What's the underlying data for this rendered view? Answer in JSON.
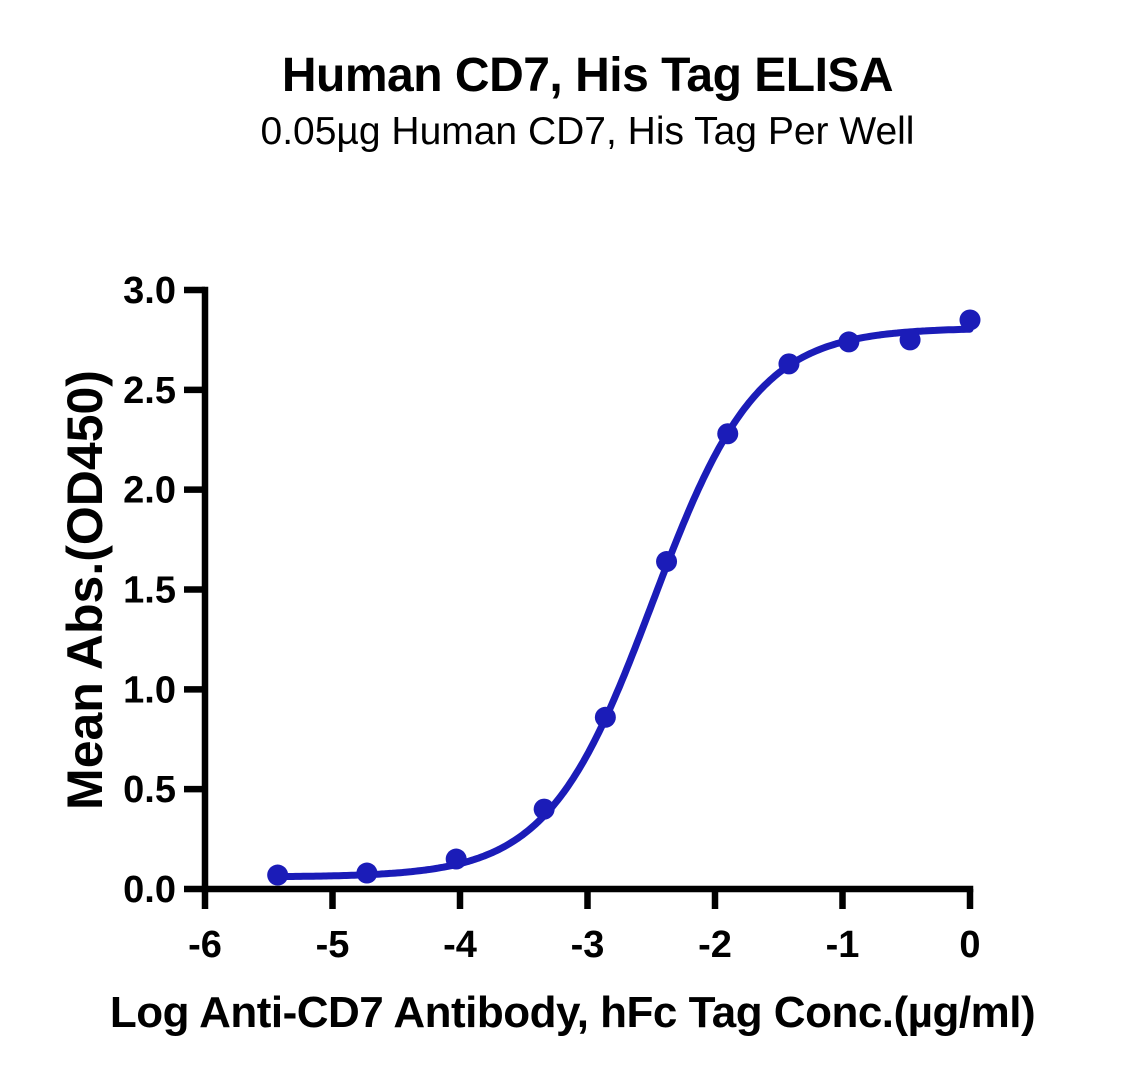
{
  "chart_data": {
    "type": "scatter",
    "title": "Human CD7, His Tag ELISA",
    "subtitle": "0.05µg Human CD7, His Tag Per Well",
    "xlabel": "Log Anti-CD7 Antibody, hFc Tag Conc.(µg/ml)",
    "ylabel": "Mean Abs.(OD450)",
    "xlim": [
      -6,
      0
    ],
    "ylim": [
      0,
      3
    ],
    "x_ticks": [
      -6,
      -5,
      -4,
      -3,
      -2,
      -1,
      0
    ],
    "y_ticks": [
      0.0,
      0.5,
      1.0,
      1.5,
      2.0,
      2.5,
      3.0
    ],
    "grid": false,
    "legend": "none",
    "axis_color": "#000000",
    "series": [
      {
        "name": "Anti-CD7 Antibody, hFc Tag",
        "color": "#1b1cb8",
        "marker": "circle",
        "points": [
          {
            "x": -5.43,
            "y": 0.07
          },
          {
            "x": -4.73,
            "y": 0.08
          },
          {
            "x": -4.03,
            "y": 0.15
          },
          {
            "x": -3.34,
            "y": 0.4
          },
          {
            "x": -2.86,
            "y": 0.86
          },
          {
            "x": -2.38,
            "y": 1.64
          },
          {
            "x": -1.9,
            "y": 2.28
          },
          {
            "x": -1.42,
            "y": 2.63
          },
          {
            "x": -0.95,
            "y": 2.74
          },
          {
            "x": -0.47,
            "y": 2.75
          },
          {
            "x": 0.0,
            "y": 2.85
          }
        ]
      }
    ],
    "fit_curve": {
      "model": "4PL",
      "bottom": 0.06,
      "top": 2.81,
      "logEC50": -2.49,
      "hillslope": 1.06,
      "x_start": -5.43,
      "x_end": 0
    }
  }
}
